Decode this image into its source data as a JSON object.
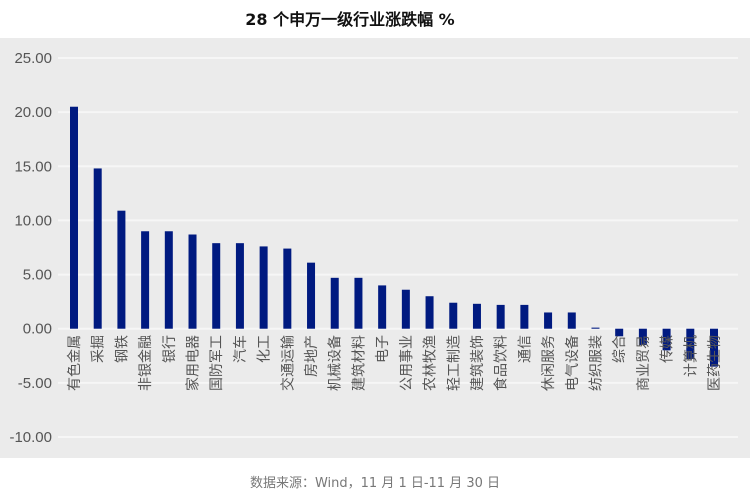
{
  "chart_data": {
    "type": "bar",
    "title": "28 个申万一级行业涨跌幅 %",
    "source_note": "数据来源：Wind，11 月 1 日-11 月 30 日",
    "categories": [
      "有色金属",
      "采掘",
      "钢铁",
      "非银金融",
      "银行",
      "家用电器",
      "国防军工",
      "汽车",
      "化工",
      "交通运输",
      "房地产",
      "机械设备",
      "建筑材料",
      "电子",
      "公用事业",
      "农林牧渔",
      "轻工制造",
      "建筑装饰",
      "食品饮料",
      "通信",
      "休闲服务",
      "电气设备",
      "纺织服装",
      "综合",
      "商业贸易",
      "传媒",
      "计算机",
      "医药生物"
    ],
    "values": [
      20.5,
      14.8,
      10.9,
      9.0,
      9.0,
      8.7,
      7.9,
      7.9,
      7.6,
      7.4,
      6.1,
      4.7,
      4.7,
      4.0,
      3.6,
      3.0,
      2.4,
      2.3,
      2.2,
      2.2,
      1.5,
      1.5,
      0.1,
      -0.7,
      -1.5,
      -2.0,
      -2.8,
      -3.5
    ],
    "ylim": [
      -10,
      25
    ],
    "yticks": [
      "-10.00",
      "-5.00",
      "0.00",
      "5.00",
      "10.00",
      "15.00",
      "20.00",
      "25.00"
    ],
    "grid": true,
    "bar_color": "#001a80",
    "plot_bg": "#ebebeb"
  }
}
